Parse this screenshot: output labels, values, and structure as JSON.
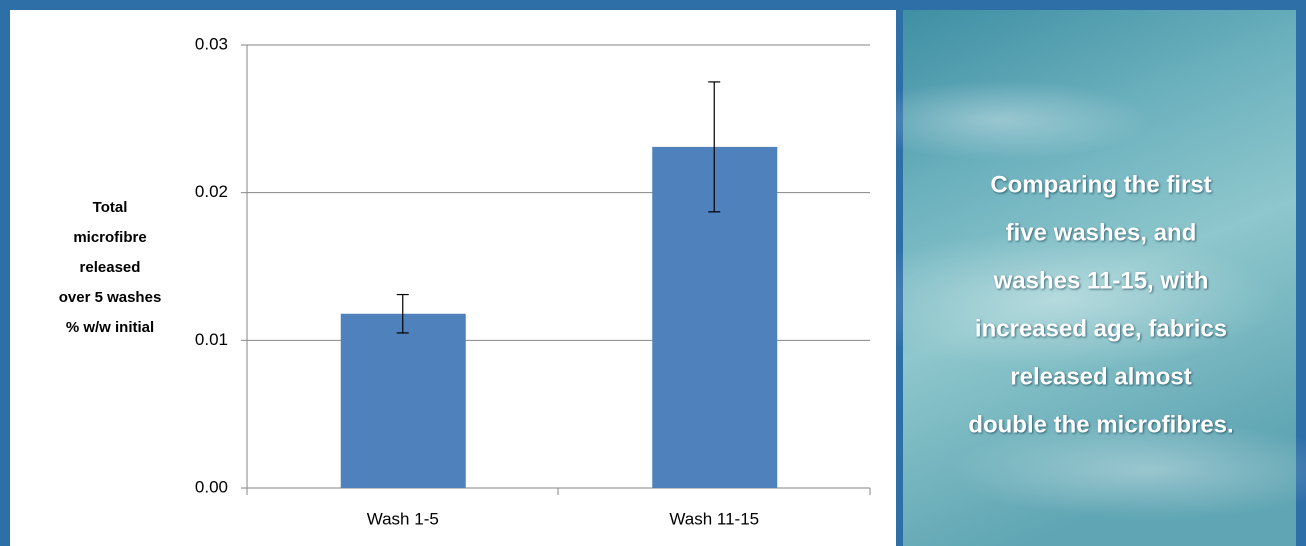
{
  "chart_data": {
    "type": "bar",
    "y_label": [
      "Total",
      "microfibre",
      "released",
      "over 5 washes",
      "% w/w initial"
    ],
    "categories": [
      "Wash 1-5",
      "Wash 11-15"
    ],
    "values": [
      0.0118,
      0.0231
    ],
    "errors": [
      0.0013,
      0.0044
    ],
    "color": "#4f81bd",
    "ylim": [
      0,
      0.03
    ],
    "yticks": [
      {
        "value": 0,
        "label": "0.00"
      },
      0.01,
      0.02,
      0.03
    ],
    "grid": true
  },
  "annotation": {
    "lines": [
      "Comparing the first",
      "five washes, and",
      "washes 11-15, with",
      "increased age, fabrics",
      "released almost",
      "double the microfibres."
    ]
  }
}
